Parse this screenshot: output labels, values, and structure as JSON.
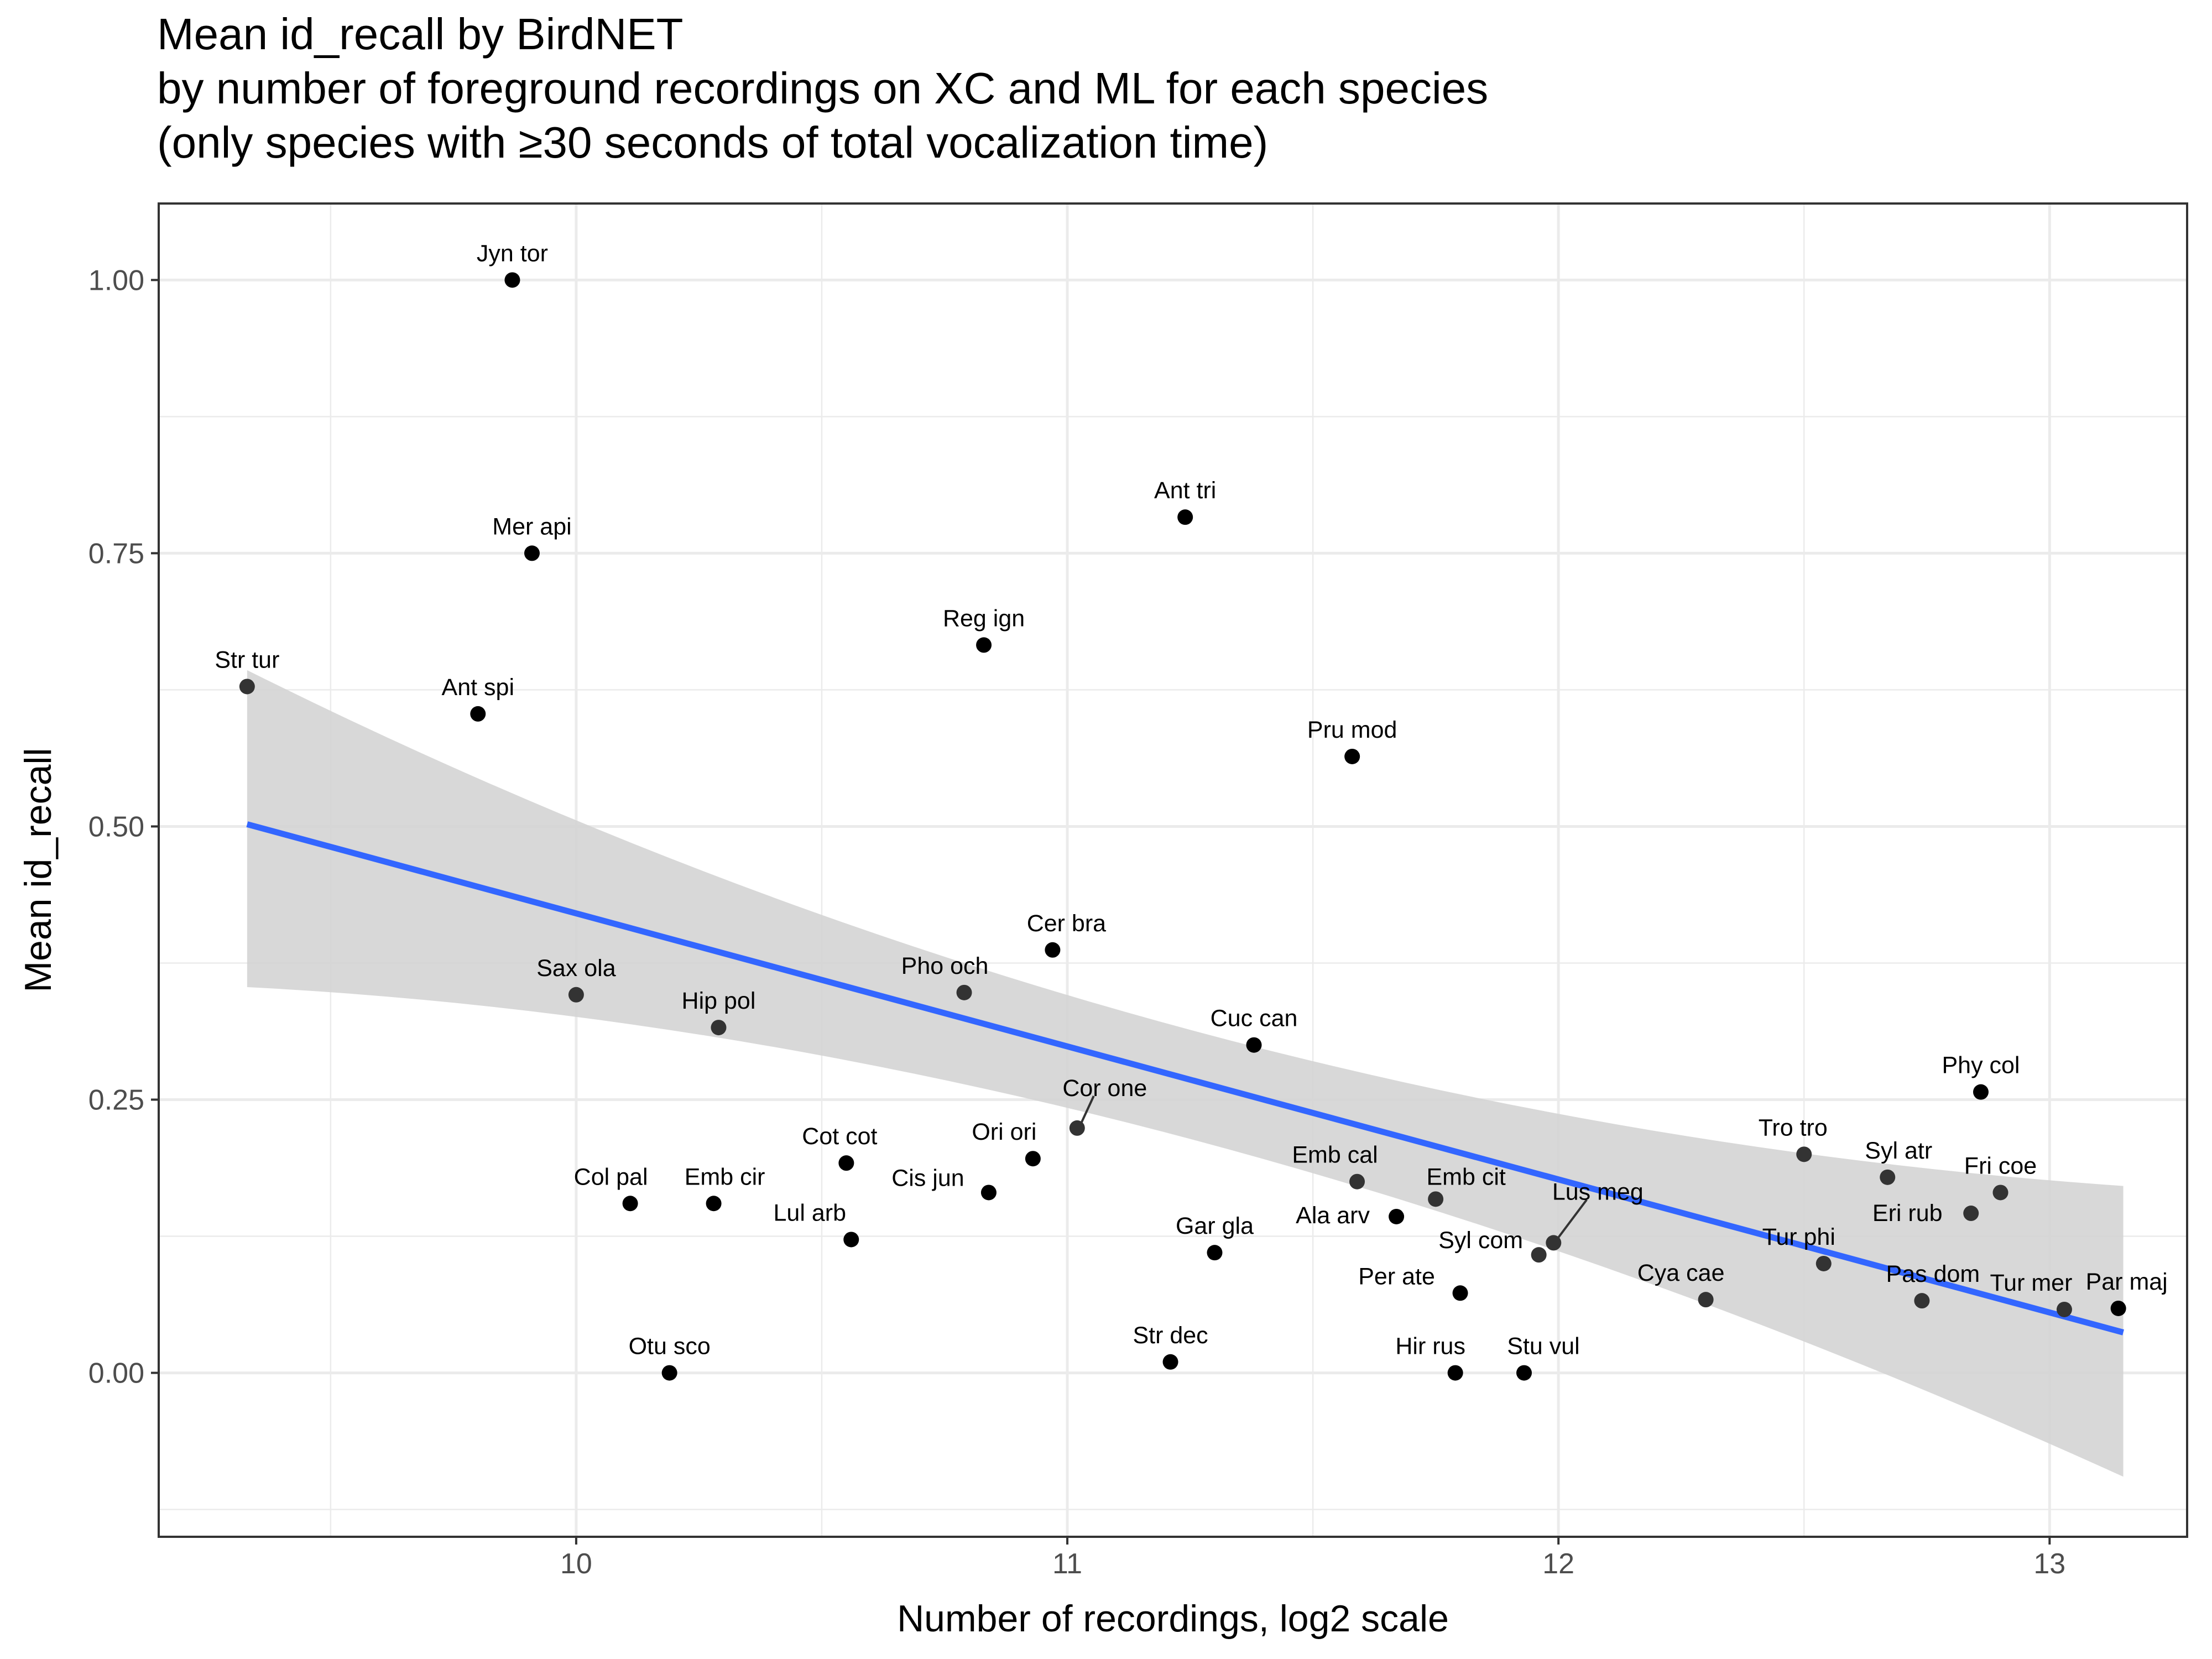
{
  "chart_data": {
    "type": "scatter",
    "title": "Mean id_recall by BirdNET",
    "subtitle": [
      "by number of foreground recordings on XC and ML for each species",
      "(only species with ≥30 seconds of total vocalization time)"
    ],
    "xlabel": "Number of recordings, log2 scale",
    "ylabel": "Mean id_recall",
    "xlim": [
      9.15,
      13.28
    ],
    "ylim": [
      -0.15,
      1.07
    ],
    "x_ticks": [
      10,
      11,
      12,
      13
    ],
    "x_tick_labels": [
      "10",
      "11",
      "12",
      "13"
    ],
    "y_ticks": [
      0,
      0.25,
      0.5,
      0.75,
      1
    ],
    "y_tick_labels": [
      "0.00",
      "0.25",
      "0.50",
      "0.75",
      "1.00"
    ],
    "grid": true,
    "colors": {
      "point": "#000000",
      "fit_line": "#3366FF",
      "ribbon": "#d4d4d4",
      "grid": "#ebebeb",
      "panel_border": "#333333"
    },
    "fit": {
      "x": [
        9.33,
        13.15
      ],
      "y": [
        0.502,
        0.037
      ],
      "ci_lower": [
        0.353,
        -0.095
      ],
      "ci_upper": [
        0.643,
        0.171
      ],
      "ci_mid_x": 11.2,
      "ci_mid_lower": 0.22,
      "ci_mid_upper": 0.32
    },
    "points": [
      {
        "label": "Str tur",
        "x": 9.33,
        "y": 0.628
      },
      {
        "label": "Ant spi",
        "x": 9.8,
        "y": 0.603
      },
      {
        "label": "Jyn tor",
        "x": 9.87,
        "y": 1.0
      },
      {
        "label": "Mer api",
        "x": 9.91,
        "y": 0.75
      },
      {
        "label": "Sax ola",
        "x": 10.0,
        "y": 0.346
      },
      {
        "label": "Col pal",
        "x": 10.11,
        "y": 0.155
      },
      {
        "label": "Otu sco",
        "x": 10.19,
        "y": 0.0
      },
      {
        "label": "Emb cir",
        "x": 10.28,
        "y": 0.155
      },
      {
        "label": "Hip pol",
        "x": 10.29,
        "y": 0.316
      },
      {
        "label": "Cot cot",
        "x": 10.55,
        "y": 0.192
      },
      {
        "label": "Lul arb",
        "x": 10.56,
        "y": 0.122
      },
      {
        "label": "Pho och",
        "x": 10.79,
        "y": 0.348
      },
      {
        "label": "Reg ign",
        "x": 10.83,
        "y": 0.666
      },
      {
        "label": "Cis jun",
        "x": 10.84,
        "y": 0.165
      },
      {
        "label": "Ori ori",
        "x": 10.93,
        "y": 0.196
      },
      {
        "label": "Cer bra",
        "x": 10.97,
        "y": 0.387
      },
      {
        "label": "Cor one",
        "x": 11.02,
        "y": 0.224
      },
      {
        "label": "Str dec",
        "x": 11.21,
        "y": 0.01
      },
      {
        "label": "Ant tri",
        "x": 11.24,
        "y": 0.783
      },
      {
        "label": "Gar gla",
        "x": 11.3,
        "y": 0.11
      },
      {
        "label": "Cuc can",
        "x": 11.38,
        "y": 0.3
      },
      {
        "label": "Pru mod",
        "x": 11.58,
        "y": 0.564
      },
      {
        "label": "Emb cal",
        "x": 11.59,
        "y": 0.175
      },
      {
        "label": "Ala arv",
        "x": 11.67,
        "y": 0.143
      },
      {
        "label": "Emb cit",
        "x": 11.75,
        "y": 0.159
      },
      {
        "label": "Hir rus",
        "x": 11.79,
        "y": 0.0
      },
      {
        "label": "Per ate",
        "x": 11.8,
        "y": 0.073
      },
      {
        "label": "Stu vul",
        "x": 11.93,
        "y": 0.0
      },
      {
        "label": "Syl com",
        "x": 11.96,
        "y": 0.108
      },
      {
        "label": "Lus meg",
        "x": 11.99,
        "y": 0.119
      },
      {
        "label": "Cya cae",
        "x": 12.3,
        "y": 0.067
      },
      {
        "label": "Tro tro",
        "x": 12.5,
        "y": 0.2
      },
      {
        "label": "Tur phi",
        "x": 12.54,
        "y": 0.1
      },
      {
        "label": "Syl atr",
        "x": 12.67,
        "y": 0.179
      },
      {
        "label": "Pas dom",
        "x": 12.74,
        "y": 0.066
      },
      {
        "label": "Eri rub",
        "x": 12.84,
        "y": 0.146
      },
      {
        "label": "Phy col",
        "x": 12.86,
        "y": 0.257
      },
      {
        "label": "Fri coe",
        "x": 12.9,
        "y": 0.165
      },
      {
        "label": "Tur mer",
        "x": 13.03,
        "y": 0.058
      },
      {
        "label": "Par maj",
        "x": 13.14,
        "y": 0.059
      }
    ]
  }
}
